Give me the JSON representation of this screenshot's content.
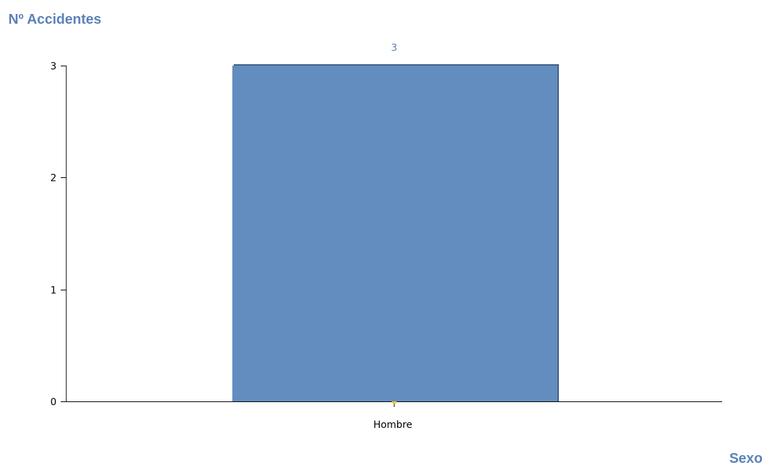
{
  "chart_data": {
    "type": "bar",
    "categories": [
      "Hombre"
    ],
    "values": [
      3
    ],
    "ylabel": "Nº Accidentes",
    "xlabel": "Sexo",
    "ylim": [
      0,
      3
    ],
    "yticks": [
      0,
      1,
      2,
      3
    ],
    "data_labels": [
      "3"
    ],
    "grid": false,
    "legend": "none"
  },
  "colors": {
    "bar": "#648DBF",
    "bar_edge": "#3E5F86",
    "axis_title": "#5B82B9",
    "axis_line": "#000000",
    "marker": "#F5C518"
  }
}
